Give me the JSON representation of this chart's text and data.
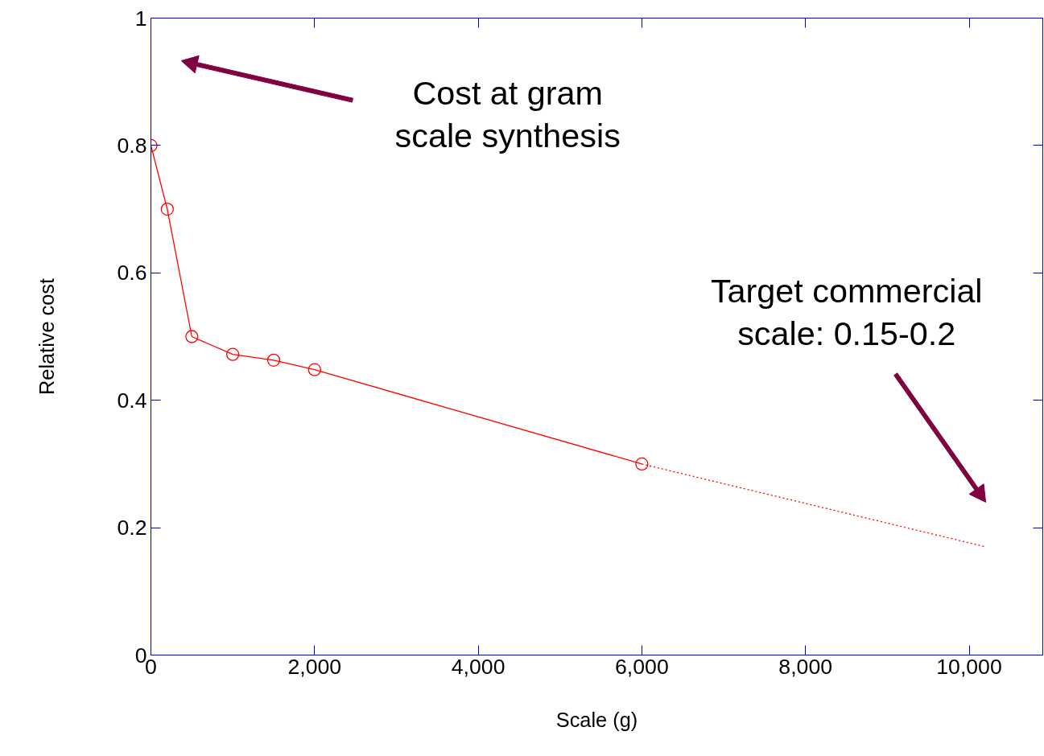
{
  "chart_data": {
    "type": "line",
    "xlabel": "Scale (g)",
    "ylabel": "Relative cost",
    "xlim": [
      0,
      10900
    ],
    "ylim": [
      0,
      1
    ],
    "xticks": [
      0,
      {
        "value": 2000,
        "label": "2,000"
      },
      {
        "value": 4000,
        "label": "4,000"
      },
      {
        "value": 6000,
        "label": "6,000"
      },
      {
        "value": 8000,
        "label": "8,000"
      },
      {
        "value": 10000,
        "label": "10,000"
      }
    ],
    "yticks": [
      0,
      0.2,
      0.4,
      0.6,
      0.8,
      1
    ],
    "grid": false,
    "series": [
      {
        "color": "#ff0000",
        "x": [
          0,
          200,
          500,
          1000,
          1500,
          2000,
          6000
        ],
        "values": [
          0.8,
          0.7,
          0.5,
          0.472,
          0.463,
          0.448,
          0.3
        ],
        "marker": "circle",
        "line_style": "solid"
      },
      {
        "color": "#ff0000",
        "x": [
          6000,
          10200
        ],
        "values": [
          0.3,
          0.17
        ],
        "marker": "none",
        "line_style": "dotted"
      }
    ],
    "annotations": [
      "Cost at gram\nscale synthesis",
      "Target commercial\nscale: 0.15-0.2"
    ]
  }
}
